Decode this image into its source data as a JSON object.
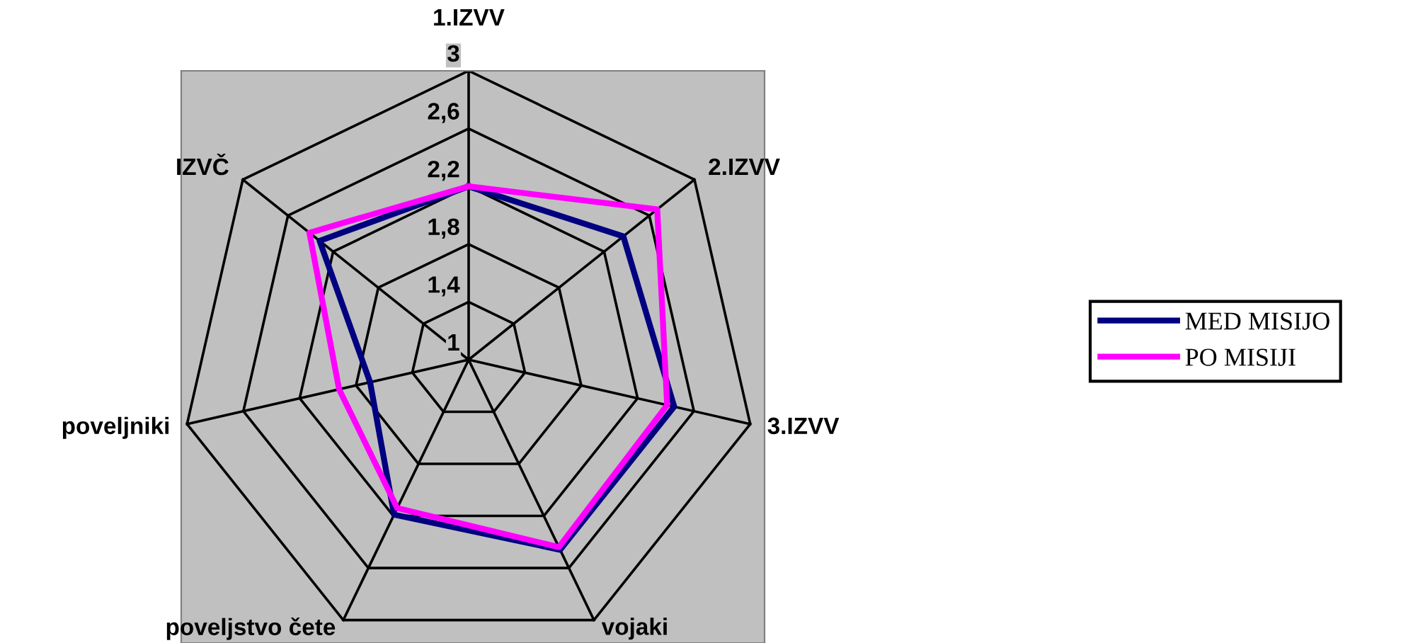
{
  "chart_data": {
    "type": "radar",
    "categories": [
      "1.IZVV",
      "2.IZVV",
      "3.IZVV",
      "vojaki",
      "poveljstvo čete",
      "poveljniki",
      "IZVČ"
    ],
    "ylim": [
      1,
      3
    ],
    "yticks": [
      1,
      {
        "value": 1.4,
        "label": "1,4"
      },
      {
        "value": 1.8,
        "label": "1,8"
      },
      {
        "value": 2.2,
        "label": "2,2"
      },
      {
        "value": 2.6,
        "label": "2,6"
      },
      3
    ],
    "series": [
      {
        "name": "MED MISIJO",
        "color": "#000080",
        "values": [
          2.2,
          2.37,
          2.46,
          2.46,
          2.19,
          1.7,
          2.32
        ]
      },
      {
        "name": "PO MISIJI",
        "color": "#ff00ff",
        "values": [
          2.2,
          2.67,
          2.41,
          2.44,
          2.14,
          1.92,
          2.41
        ]
      }
    ],
    "legend": "right",
    "marker": "none",
    "line_style": "solid",
    "grid": true
  }
}
